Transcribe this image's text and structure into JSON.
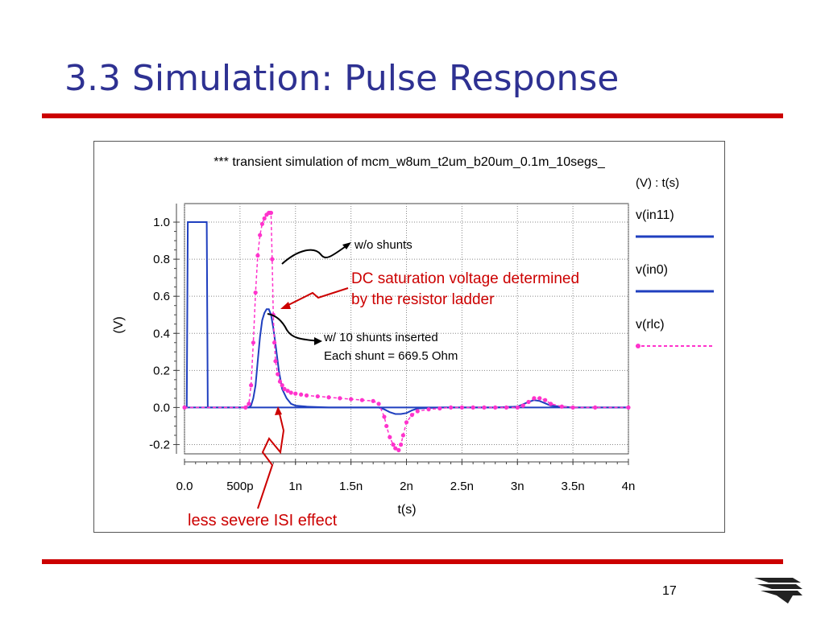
{
  "slide": {
    "title": "3.3 Simulation: Pulse Response",
    "page_number": "17"
  },
  "colors": {
    "title": "#2e3192",
    "rule": "#cc0000",
    "annotation": "#cc0000",
    "in11": "#1f3fbf",
    "in0": "#1f3fbf",
    "rlc": "#ff33cc"
  },
  "icons": {
    "logo": "stacked-wave-logo-icon"
  },
  "chart_data": {
    "type": "line",
    "title": "*** transient simulation of mcm_w8um_t2um_b20um_0.1m_10segs_",
    "xlabel": "t(s)",
    "ylabel": "(V)",
    "legend_header": "(V) : t(s)",
    "legend_position": "right",
    "grid": true,
    "xlim": [
      0,
      4
    ],
    "x_unit_note": "ns",
    "ylim": [
      -0.25,
      1.1
    ],
    "x_ticks": [
      {
        "value": 0,
        "label": "0.0"
      },
      {
        "value": 0.5,
        "label": "500p"
      },
      {
        "value": 1,
        "label": "1n"
      },
      {
        "value": 1.5,
        "label": "1.5n"
      },
      {
        "value": 2,
        "label": "2n"
      },
      {
        "value": 2.5,
        "label": "2.5n"
      },
      {
        "value": 3,
        "label": "3n"
      },
      {
        "value": 3.5,
        "label": "3.5n"
      },
      {
        "value": 4,
        "label": "4n"
      }
    ],
    "y_ticks": [
      {
        "value": 1.0,
        "label": "1.0"
      },
      {
        "value": 0.8,
        "label": "0.8"
      },
      {
        "value": 0.6,
        "label": "0.6"
      },
      {
        "value": 0.4,
        "label": "0.4"
      },
      {
        "value": 0.2,
        "label": "0.2"
      },
      {
        "value": 0.0,
        "label": "0.0"
      },
      {
        "value": -0.2,
        "label": "-0.2"
      }
    ],
    "series": [
      {
        "name": "v(in11)",
        "style": "solid",
        "x": [
          0,
          0.02,
          0.03,
          0.19,
          0.2,
          0.21,
          4
        ],
        "y": [
          0,
          0,
          1.0,
          1.0,
          1.0,
          0,
          0
        ]
      },
      {
        "name": "v(in0)",
        "style": "solid",
        "x": [
          0,
          0.58,
          0.6,
          0.62,
          0.64,
          0.66,
          0.68,
          0.7,
          0.72,
          0.74,
          0.76,
          0.78,
          0.8,
          0.82,
          0.85,
          0.88,
          0.92,
          0.96,
          1.0,
          1.1,
          1.3,
          1.6,
          1.75,
          1.8,
          1.85,
          1.9,
          1.95,
          2.0,
          2.05,
          2.1,
          2.3,
          2.8,
          3.0,
          3.1,
          3.15,
          3.2,
          3.3,
          3.5,
          4.0
        ],
        "y": [
          0,
          0,
          0.01,
          0.05,
          0.12,
          0.25,
          0.38,
          0.47,
          0.51,
          0.53,
          0.53,
          0.5,
          0.43,
          0.34,
          0.2,
          0.1,
          0.05,
          0.02,
          0.01,
          0.005,
          0,
          0,
          0,
          -0.01,
          -0.025,
          -0.035,
          -0.035,
          -0.03,
          -0.015,
          -0.005,
          0,
          0,
          0.005,
          0.03,
          0.04,
          0.035,
          0.01,
          0,
          0
        ]
      },
      {
        "name": "v(rlc)",
        "style": "dashed-markers",
        "x": [
          0,
          0.55,
          0.58,
          0.6,
          0.62,
          0.64,
          0.66,
          0.68,
          0.7,
          0.72,
          0.74,
          0.76,
          0.77,
          0.78,
          0.79,
          0.8,
          0.81,
          0.82,
          0.84,
          0.86,
          0.88,
          0.9,
          0.93,
          0.96,
          1.0,
          1.05,
          1.1,
          1.2,
          1.3,
          1.4,
          1.5,
          1.6,
          1.7,
          1.75,
          1.8,
          1.82,
          1.85,
          1.88,
          1.9,
          1.93,
          1.95,
          1.97,
          2.0,
          2.05,
          2.1,
          2.2,
          2.3,
          2.4,
          2.5,
          2.6,
          2.7,
          2.8,
          2.9,
          3.0,
          3.05,
          3.1,
          3.15,
          3.2,
          3.25,
          3.3,
          3.4,
          3.5,
          3.7,
          4.0
        ],
        "y": [
          0,
          0,
          0.02,
          0.12,
          0.35,
          0.62,
          0.82,
          0.93,
          0.99,
          1.02,
          1.04,
          1.05,
          1.05,
          1.05,
          0.8,
          0.5,
          0.35,
          0.25,
          0.18,
          0.14,
          0.12,
          0.1,
          0.09,
          0.08,
          0.075,
          0.07,
          0.065,
          0.06,
          0.055,
          0.05,
          0.045,
          0.04,
          0.035,
          0.02,
          -0.05,
          -0.1,
          -0.16,
          -0.2,
          -0.22,
          -0.23,
          -0.2,
          -0.15,
          -0.08,
          -0.04,
          -0.02,
          -0.01,
          -0.005,
          0,
          0,
          0,
          0,
          0,
          0,
          0,
          0.01,
          0.03,
          0.05,
          0.05,
          0.04,
          0.02,
          0.005,
          0,
          0,
          0
        ]
      }
    ],
    "annotations": {
      "wo_shunts": "w/o shunts",
      "with_shunts_line1": "w/ 10 shunts inserted",
      "with_shunts_line2": "Each shunt = 669.5 Ohm",
      "dc_saturation_line1": "DC saturation voltage determined",
      "dc_saturation_line2": "by the resistor ladder",
      "isi": "less severe ISI effect"
    }
  }
}
